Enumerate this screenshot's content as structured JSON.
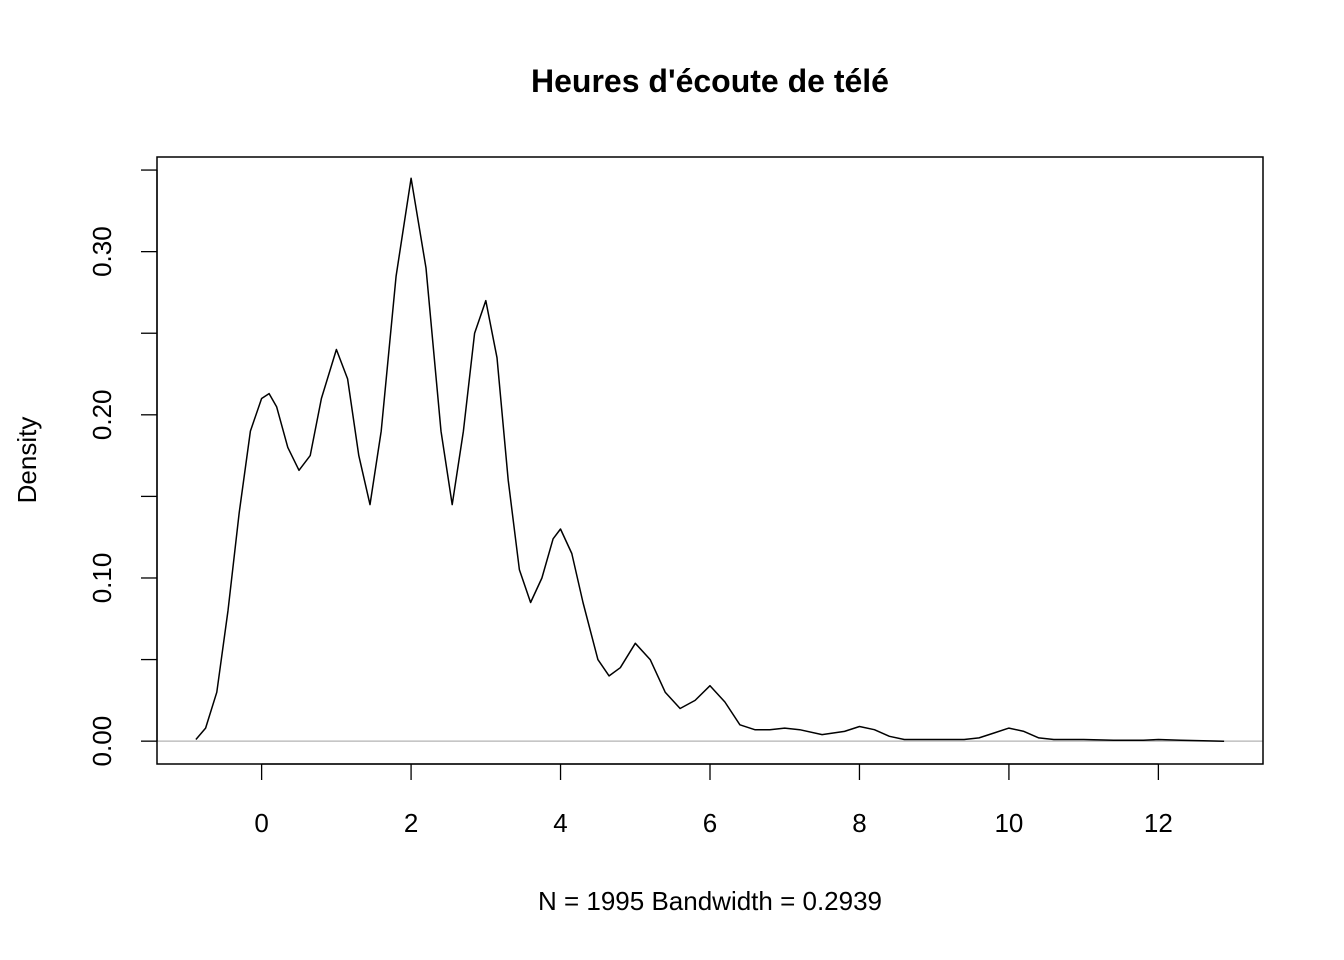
{
  "chart_data": {
    "type": "line",
    "title": "Heures d'écoute de télé",
    "xlabel": "N = 1995   Bandwidth = 0.2939",
    "ylabel": "Density",
    "xlim": [
      -1.4,
      13.4
    ],
    "ylim": [
      -0.014,
      0.358
    ],
    "x_ticks": [
      0,
      2,
      4,
      6,
      8,
      10,
      12
    ],
    "x_tick_labels": [
      "0",
      "2",
      "4",
      "6",
      "8",
      "10",
      "12"
    ],
    "y_ticks": [
      0.0,
      0.05,
      0.1,
      0.15,
      0.2,
      0.25,
      0.3,
      0.35
    ],
    "y_tick_labels": [
      "0.00",
      "",
      "0.10",
      "",
      "0.20",
      "",
      "0.30",
      ""
    ],
    "zero_line": true,
    "grid": false,
    "legend": "none",
    "series": [
      {
        "x": [
          -0.88,
          -0.75,
          -0.6,
          -0.45,
          -0.3,
          -0.15,
          0.0,
          0.1,
          0.2,
          0.35,
          0.5,
          0.65,
          0.8,
          1.0,
          1.15,
          1.3,
          1.45,
          1.6,
          1.8,
          2.0,
          2.2,
          2.4,
          2.55,
          2.7,
          2.85,
          3.0,
          3.15,
          3.3,
          3.45,
          3.6,
          3.75,
          3.9,
          4.0,
          4.15,
          4.3,
          4.5,
          4.65,
          4.8,
          5.0,
          5.2,
          5.4,
          5.6,
          5.8,
          6.0,
          6.2,
          6.4,
          6.6,
          6.8,
          7.0,
          7.2,
          7.5,
          7.8,
          8.0,
          8.2,
          8.4,
          8.6,
          9.0,
          9.4,
          9.6,
          9.8,
          10.0,
          10.2,
          10.4,
          10.6,
          11.0,
          11.4,
          11.8,
          12.0,
          12.3,
          12.6,
          12.88
        ],
        "y": [
          0.001,
          0.008,
          0.03,
          0.08,
          0.14,
          0.19,
          0.21,
          0.213,
          0.205,
          0.18,
          0.166,
          0.175,
          0.21,
          0.24,
          0.222,
          0.175,
          0.145,
          0.19,
          0.285,
          0.345,
          0.29,
          0.19,
          0.145,
          0.19,
          0.25,
          0.27,
          0.235,
          0.16,
          0.105,
          0.085,
          0.1,
          0.124,
          0.13,
          0.115,
          0.085,
          0.05,
          0.04,
          0.045,
          0.06,
          0.05,
          0.03,
          0.02,
          0.025,
          0.034,
          0.024,
          0.01,
          0.007,
          0.007,
          0.008,
          0.007,
          0.004,
          0.006,
          0.009,
          0.007,
          0.003,
          0.001,
          0.001,
          0.001,
          0.002,
          0.005,
          0.008,
          0.006,
          0.002,
          0.001,
          0.001,
          0.0005,
          0.0005,
          0.001,
          0.0005,
          0.0002,
          0.0
        ]
      }
    ]
  }
}
